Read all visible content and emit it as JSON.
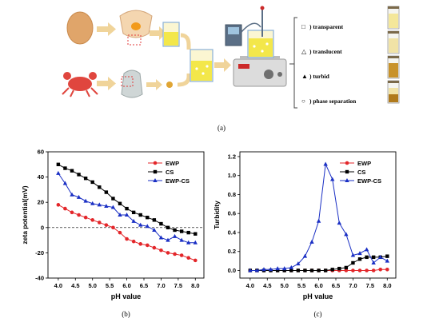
{
  "panel_a": {
    "caption": "(a)",
    "legend": [
      {
        "symbol": "□",
        "label": ") transparent"
      },
      {
        "symbol": "△",
        "label": ") translucent"
      },
      {
        "symbol": "▲",
        "label": ") turbid"
      },
      {
        "symbol": "○",
        "label": ") phase separation"
      }
    ],
    "vial_colors": [
      "#f4e79a",
      "#f1e3a6",
      "#c8922a",
      "#b07a1c"
    ]
  },
  "chart_data": [
    {
      "type": "line",
      "caption": "(b)",
      "xlabel": "pH value",
      "ylabel": "zeta potential(mV)",
      "xlim": [
        3.7,
        8.25
      ],
      "ylim": [
        -40,
        60
      ],
      "xticks": [
        "4.0",
        "4.5",
        "5.0",
        "5.5",
        "6.0",
        "6.5",
        "7.0",
        "7.5",
        "8.0"
      ],
      "yticks": [
        "-40",
        "-20",
        "0",
        "20",
        "40",
        "60"
      ],
      "reference_line": 0,
      "legend_position": "top-right",
      "x": [
        4.0,
        4.2,
        4.4,
        4.6,
        4.8,
        5.0,
        5.2,
        5.4,
        5.6,
        5.8,
        6.0,
        6.2,
        6.4,
        6.6,
        6.8,
        7.0,
        7.2,
        7.4,
        7.6,
        7.8,
        8.0
      ],
      "series": [
        {
          "name": "EWP",
          "color": "#e3262a",
          "marker": "circle",
          "values": [
            18,
            15,
            12,
            10,
            8,
            6,
            4,
            2,
            0,
            -4,
            -9,
            -11,
            -13,
            -14,
            -16,
            -18,
            -20,
            -21,
            -22,
            -24,
            -26
          ]
        },
        {
          "name": "CS",
          "color": "#000000",
          "marker": "square",
          "values": [
            50,
            47,
            45,
            42,
            39,
            36,
            32,
            28,
            23,
            19,
            15,
            12,
            10,
            8,
            6,
            3,
            0,
            -2,
            -3,
            -4,
            -5
          ]
        },
        {
          "name": "EWP-CS",
          "color": "#1a2fc4",
          "marker": "triangle",
          "values": [
            43,
            35,
            26,
            24,
            21,
            19,
            18,
            17,
            16,
            10,
            10,
            5,
            2,
            1,
            -2,
            -8,
            -10,
            -7,
            -10,
            -12,
            -12
          ]
        }
      ]
    },
    {
      "type": "line",
      "caption": "(c)",
      "xlabel": "pH value",
      "ylabel": "Turbidity",
      "xlim": [
        3.7,
        8.25
      ],
      "ylim": [
        -0.08,
        1.25
      ],
      "xticks": [
        "4.0",
        "4.5",
        "5.0",
        "5.5",
        "6.0",
        "6.5",
        "7.0",
        "7.5",
        "8.0"
      ],
      "yticks": [
        "0.0",
        "0.2",
        "0.4",
        "0.6",
        "0.8",
        "1.0",
        "1.2"
      ],
      "legend_position": "top-right",
      "x": [
        4.0,
        4.2,
        4.4,
        4.6,
        4.8,
        5.0,
        5.2,
        5.4,
        5.6,
        5.8,
        6.0,
        6.2,
        6.4,
        6.6,
        6.8,
        7.0,
        7.2,
        7.4,
        7.6,
        7.8,
        8.0
      ],
      "series": [
        {
          "name": "EWP",
          "color": "#e3262a",
          "marker": "circle",
          "values": [
            0.0,
            0.0,
            0.0,
            0.0,
            0.0,
            0.0,
            0.0,
            0.0,
            0.0,
            0.0,
            0.0,
            0.0,
            0.0,
            0.0,
            0.0,
            0.0,
            0.0,
            0.0,
            0.0,
            0.01,
            0.01
          ]
        },
        {
          "name": "CS",
          "color": "#000000",
          "marker": "square",
          "values": [
            0.0,
            0.0,
            0.0,
            0.0,
            0.0,
            0.0,
            0.0,
            0.0,
            0.0,
            0.0,
            0.0,
            0.0,
            0.01,
            0.02,
            0.03,
            0.08,
            0.12,
            0.14,
            0.14,
            0.14,
            0.15
          ]
        },
        {
          "name": "EWP-CS",
          "color": "#1a2fc4",
          "marker": "triangle",
          "values": [
            0.0,
            0.0,
            0.01,
            0.01,
            0.02,
            0.02,
            0.03,
            0.07,
            0.15,
            0.3,
            0.52,
            1.12,
            0.96,
            0.5,
            0.38,
            0.16,
            0.18,
            0.22,
            0.08,
            0.14,
            0.1
          ]
        }
      ]
    }
  ]
}
